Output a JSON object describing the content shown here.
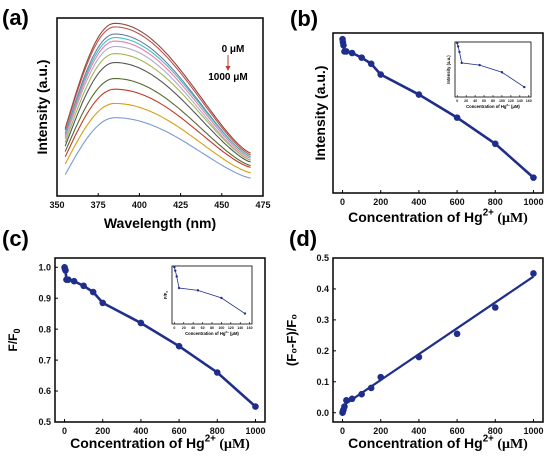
{
  "chart_data": [
    {
      "id": "a",
      "type": "line",
      "panel_label": "(a)",
      "xlabel": "Wavelength (nm)",
      "ylabel": "Intensity (a.u.)",
      "xlim": [
        350,
        475
      ],
      "xticks": [
        350,
        375,
        400,
        425,
        450,
        475
      ],
      "annotation_top": "0 μM",
      "annotation_bottom": "1000 μM",
      "series_colors": [
        "#8e4a3c",
        "#c0504d",
        "#6a7f9e",
        "#3cc4c4",
        "#e87da8",
        "#b4a8c8",
        "#a0b856",
        "#555555",
        "#556b2f",
        "#c0392b",
        "#d4a017",
        "#7d9bd1"
      ],
      "peak_x": 385,
      "peak_intensity": [
        0.97,
        0.95,
        0.91,
        0.89,
        0.87,
        0.84,
        0.8,
        0.75,
        0.66,
        0.6,
        0.52,
        0.44
      ],
      "start_intensity": [
        0.38,
        0.37,
        0.35,
        0.34,
        0.33,
        0.32,
        0.3,
        0.28,
        0.25,
        0.22,
        0.18,
        0.12
      ],
      "end_intensity": [
        0.24,
        0.23,
        0.22,
        0.22,
        0.21,
        0.2,
        0.2,
        0.19,
        0.17,
        0.16,
        0.13,
        0.1
      ]
    },
    {
      "id": "b",
      "type": "line",
      "panel_label": "(b)",
      "xlabel_base": "Concentration of Hg",
      "xlabel_sup": "2+",
      "xlabel_unit": "(μM)",
      "ylabel": "Intensity (a.u.)",
      "xlim": [
        -50,
        1050
      ],
      "xticks": [
        0,
        200,
        400,
        600,
        800,
        1000
      ],
      "ylim": [
        0.5,
        1.02
      ],
      "x": [
        0,
        2,
        5,
        10,
        20,
        50,
        100,
        150,
        200,
        400,
        600,
        800,
        1000
      ],
      "y": [
        1.0,
        0.99,
        0.98,
        0.96,
        0.96,
        0.955,
        0.94,
        0.92,
        0.885,
        0.82,
        0.745,
        0.66,
        0.55
      ],
      "inset": {
        "type": "line",
        "ylabel": "Intensity (a.u.)",
        "xlabel_base": "Concentration of Hg",
        "xlabel_sup": "2+",
        "xlabel_unit": "(μM)",
        "xlim": [
          -5,
          165
        ],
        "xticks": [
          0,
          20,
          40,
          60,
          80,
          100,
          120,
          140,
          160
        ],
        "ylim": [
          0.9,
          1.0
        ],
        "x": [
          0,
          2,
          5,
          10,
          50,
          100,
          150
        ],
        "y": [
          0.998,
          0.992,
          0.982,
          0.962,
          0.958,
          0.945,
          0.918
        ]
      }
    },
    {
      "id": "c",
      "type": "line",
      "panel_label": "(c)",
      "ylabel_base": "F/F",
      "ylabel_sub": "0",
      "xlabel_base": "Concentration of Hg",
      "xlabel_sup": "2+",
      "xlabel_unit": "(μM)",
      "xlim": [
        -50,
        1050
      ],
      "xticks": [
        0,
        200,
        400,
        600,
        800,
        1000
      ],
      "yticks": [
        0.5,
        0.6,
        0.7,
        0.8,
        0.9,
        1.0
      ],
      "ylim": [
        0.5,
        1.03
      ],
      "x": [
        0,
        2,
        5,
        10,
        20,
        50,
        100,
        150,
        200,
        400,
        600,
        800,
        1000
      ],
      "y": [
        1.0,
        0.995,
        0.99,
        0.96,
        0.96,
        0.955,
        0.94,
        0.92,
        0.885,
        0.82,
        0.745,
        0.66,
        0.55
      ],
      "inset": {
        "type": "line",
        "ylabel_base": "F/F",
        "ylabel_sub": "0",
        "xlabel_base": "Concentration of Hg",
        "xlabel_sup": "2+",
        "xlabel_unit": "(μM)",
        "xlim": [
          -5,
          165
        ],
        "xticks": [
          0,
          20,
          40,
          60,
          80,
          100,
          120,
          140,
          160
        ],
        "ylim": [
          0.9,
          1.0
        ],
        "x": [
          0,
          2,
          5,
          10,
          50,
          100,
          150
        ],
        "y": [
          0.998,
          0.992,
          0.982,
          0.962,
          0.958,
          0.945,
          0.918
        ]
      }
    },
    {
      "id": "d",
      "type": "scatter",
      "panel_label": "(d)",
      "ylabel_html": "(F₀-F)/F₀",
      "xlabel_base": "Concentration of Hg",
      "xlabel_sup": "2+",
      "xlabel_unit": "(μM)",
      "xlim": [
        -50,
        1050
      ],
      "xticks": [
        0,
        200,
        400,
        600,
        800,
        1000
      ],
      "yticks": [
        0.0,
        0.1,
        0.2,
        0.3,
        0.4,
        0.5
      ],
      "ylim": [
        -0.03,
        0.5
      ],
      "x": [
        0,
        2,
        5,
        10,
        20,
        50,
        100,
        150,
        200,
        400,
        600,
        800,
        1000
      ],
      "y": [
        0.0,
        0.005,
        0.01,
        0.02,
        0.04,
        0.045,
        0.06,
        0.08,
        0.115,
        0.18,
        0.255,
        0.34,
        0.45
      ],
      "fit": {
        "x": [
          0,
          1000
        ],
        "y": [
          0.022,
          0.44
        ]
      }
    }
  ]
}
